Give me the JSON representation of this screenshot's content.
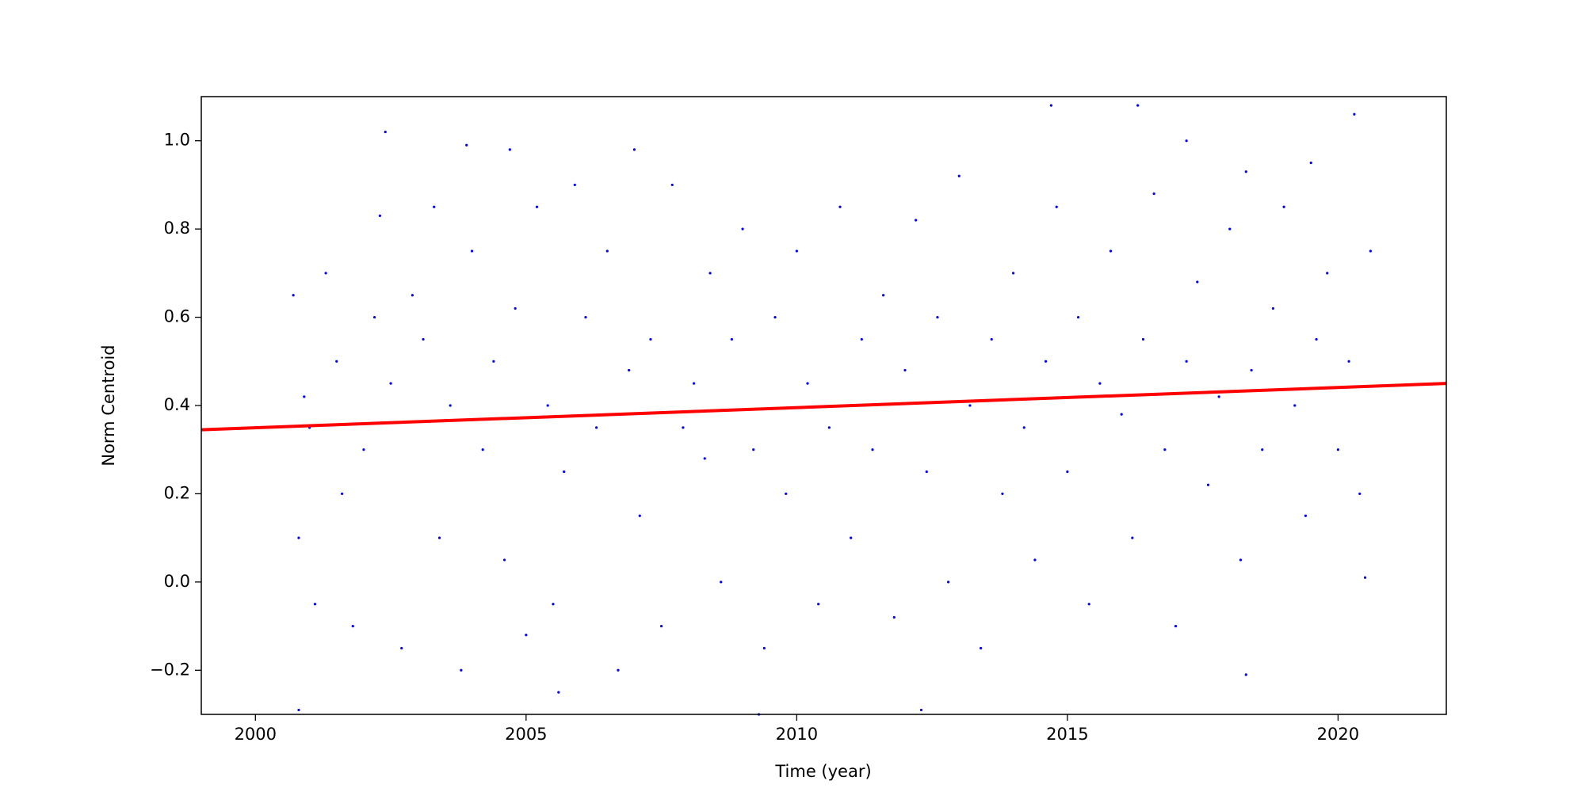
{
  "chart_data": {
    "type": "scatter",
    "xlabel": "Time (year)",
    "ylabel": "Norm Centroid",
    "xlim": [
      1999,
      2022
    ],
    "xticks": [
      2000,
      2005,
      2010,
      2015,
      2020
    ],
    "ylim": [
      -0.3,
      1.1
    ],
    "yticks": [
      {
        "value": -0.2,
        "label": "−0.2"
      },
      {
        "value": 0,
        "label": "0.0"
      },
      0.2,
      0.4,
      0.6,
      0.8,
      {
        "value": 1,
        "label": "1.0"
      }
    ],
    "series": [
      {
        "type": "scatter",
        "color": "#0000ff",
        "x": [
          2000.7,
          2000.8,
          2000.9,
          2001.0,
          2001.1,
          2001.3,
          2001.5,
          2001.6,
          2001.8,
          2002.0,
          2002.2,
          2002.3,
          2002.5,
          2002.7,
          2002.9,
          2003.1,
          2003.3,
          2003.4,
          2003.6,
          2003.8,
          2004.0,
          2004.2,
          2004.4,
          2004.6,
          2004.8,
          2005.0,
          2005.2,
          2005.4,
          2005.5,
          2005.7,
          2005.9,
          2006.1,
          2006.3,
          2006.5,
          2006.7,
          2006.9,
          2007.1,
          2007.3,
          2007.5,
          2007.7,
          2007.9,
          2008.1,
          2008.3,
          2008.4,
          2008.6,
          2008.8,
          2009.0,
          2009.2,
          2009.4,
          2009.6,
          2009.8,
          2010.0,
          2010.2,
          2010.4,
          2010.6,
          2010.8,
          2011.0,
          2011.2,
          2011.4,
          2011.6,
          2011.8,
          2012.0,
          2012.2,
          2012.4,
          2012.6,
          2012.8,
          2013.0,
          2013.2,
          2013.4,
          2013.6,
          2013.8,
          2014.0,
          2014.2,
          2014.4,
          2014.6,
          2014.8,
          2015.0,
          2015.2,
          2015.4,
          2015.6,
          2015.8,
          2016.0,
          2016.2,
          2016.4,
          2016.6,
          2016.8,
          2017.0,
          2017.2,
          2017.4,
          2017.6,
          2017.8,
          2018.0,
          2018.2,
          2018.4,
          2018.6,
          2018.8,
          2019.0,
          2019.2,
          2019.4,
          2019.6,
          2019.8,
          2020.0,
          2020.2,
          2020.4,
          2020.6,
          2020.5,
          2002.4,
          2014.7,
          2016.3,
          2020.3,
          2019.5,
          2003.9,
          2004.7,
          2007.0,
          2017.2,
          2018.3,
          2009.3,
          2018.3,
          2000.8,
          2012.3,
          2005.6
        ],
        "values": [
          0.65,
          0.1,
          0.42,
          0.35,
          -0.05,
          0.7,
          0.5,
          0.2,
          -0.1,
          0.3,
          0.6,
          0.83,
          0.45,
          -0.15,
          0.65,
          0.55,
          0.85,
          0.1,
          0.4,
          -0.2,
          0.75,
          0.3,
          0.5,
          0.05,
          0.62,
          -0.12,
          0.85,
          0.4,
          -0.05,
          0.25,
          0.9,
          0.6,
          0.35,
          0.75,
          -0.2,
          0.48,
          0.15,
          0.55,
          -0.1,
          0.9,
          0.35,
          0.45,
          0.28,
          0.7,
          0,
          0.55,
          0.8,
          0.3,
          -0.15,
          0.6,
          0.2,
          0.75,
          0.45,
          -0.05,
          0.35,
          0.85,
          0.1,
          0.55,
          0.3,
          0.65,
          -0.08,
          0.48,
          0.82,
          0.25,
          0.6,
          0,
          0.92,
          0.4,
          -0.15,
          0.55,
          0.2,
          0.7,
          0.35,
          0.05,
          0.5,
          0.85,
          0.25,
          0.6,
          -0.05,
          0.45,
          0.75,
          0.38,
          0.1,
          0.55,
          0.88,
          0.3,
          -0.1,
          0.5,
          0.68,
          0.22,
          0.42,
          0.8,
          0.05,
          0.48,
          0.3,
          0.62,
          0.85,
          0.4,
          0.15,
          0.55,
          0.7,
          0.3,
          0.5,
          0.2,
          0.75,
          0.01,
          1.02,
          1.08,
          1.08,
          1.06,
          0.95,
          0.99,
          0.98,
          0.98,
          1.0,
          0.93,
          -0.3,
          -0.21,
          -0.29,
          -0.29,
          -0.25
        ]
      },
      {
        "type": "line",
        "color": "#ff0000",
        "x": [
          1999,
          2022
        ],
        "values": [
          0.345,
          0.45
        ]
      }
    ]
  }
}
